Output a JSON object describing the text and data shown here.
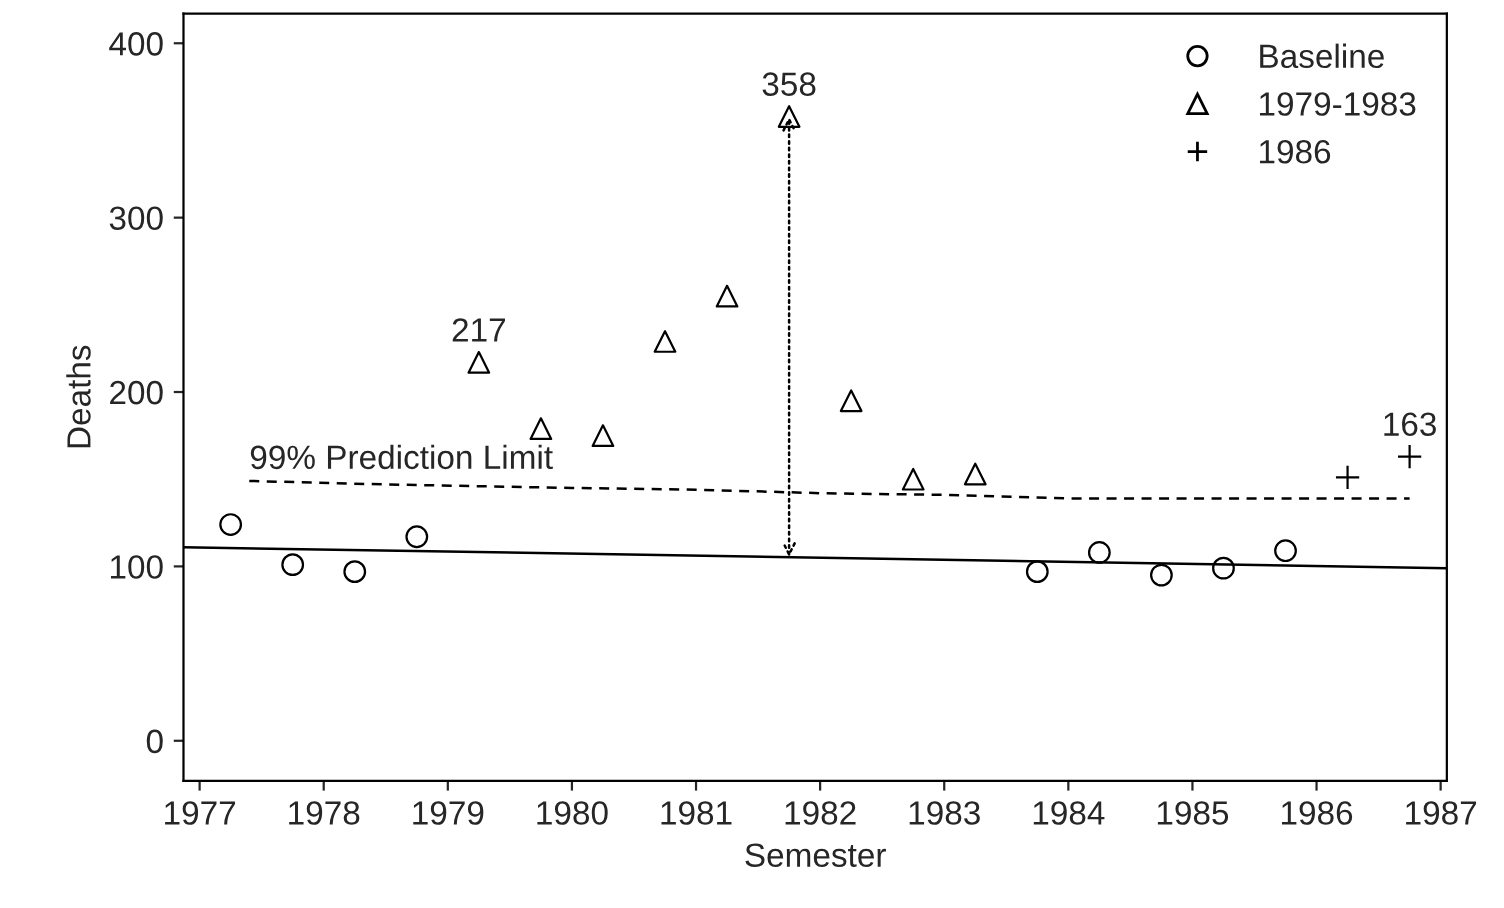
{
  "chart_data": {
    "type": "scatter",
    "xlabel": "Semester",
    "ylabel": "Deaths",
    "xlim": [
      1976.87,
      1987.05
    ],
    "ylim": [
      -23,
      417
    ],
    "xticks": [
      1977,
      1978,
      1979,
      1980,
      1981,
      1982,
      1983,
      1984,
      1985,
      1986,
      1987
    ],
    "yticks": [
      0,
      100,
      200,
      300,
      400
    ],
    "grid": false,
    "legend": "top right",
    "series": [
      {
        "name": "Baseline",
        "marker": "circle",
        "color": "#000000",
        "x": [
          1977.25,
          1977.75,
          1978.25,
          1978.75,
          1983.75,
          1984.25,
          1984.75,
          1985.25,
          1985.75
        ],
        "values": [
          124,
          101,
          97,
          117,
          97,
          108,
          95,
          99,
          109
        ]
      },
      {
        "name": "1979-1983",
        "marker": "triangle",
        "color": "#000000",
        "x": [
          1979.25,
          1979.75,
          1980.25,
          1980.75,
          1981.25,
          1981.75,
          1982.25,
          1982.75,
          1983.25
        ],
        "values": [
          217,
          179,
          175,
          229,
          255,
          358,
          195,
          150,
          153
        ]
      },
      {
        "name": "1986",
        "marker": "cross",
        "color": "#000000",
        "x": [
          1986.25,
          1986.75
        ],
        "values": [
          151,
          163
        ]
      },
      {
        "type": "line",
        "line_style": "solid",
        "color": "#000000",
        "x": [
          1976.87,
          1987.05
        ],
        "values": [
          111,
          99
        ]
      },
      {
        "name": "99% Prediction Limit",
        "type": "line",
        "line_style": "dashed",
        "color": "#000000",
        "x": [
          1977.4,
          1978.5,
          1980,
          1981,
          1982,
          1983,
          1984,
          1986.75
        ],
        "values": [
          149,
          147,
          145,
          144,
          142,
          141,
          139,
          139
        ]
      }
    ],
    "annotations": [
      {
        "text": "217",
        "x": 1979.25,
        "y": 217
      },
      {
        "text": "358",
        "x": 1981.75,
        "y": 358
      },
      {
        "text": "163",
        "x": 1986.75,
        "y": 163
      }
    ]
  }
}
